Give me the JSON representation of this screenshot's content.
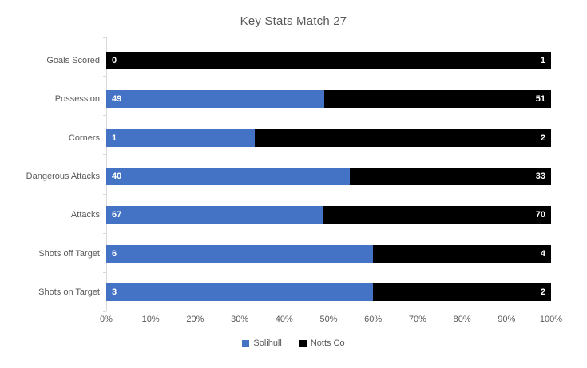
{
  "chart_data": {
    "type": "bar",
    "subtype": "horizontal-100-percent-stacked",
    "title": "Key Stats Match 27",
    "categories": [
      "Goals Scored",
      "Possession",
      "Corners",
      "Dangerous Attacks",
      "Attacks",
      "Shots off Target",
      "Shots on Target"
    ],
    "series": [
      {
        "name": "Solihull",
        "color": "#4472C4",
        "values": [
          0,
          49,
          1,
          40,
          67,
          6,
          3
        ]
      },
      {
        "name": "Notts Co",
        "color": "#000000",
        "values": [
          1,
          51,
          2,
          33,
          70,
          4,
          2
        ]
      }
    ],
    "xlabel": "",
    "ylabel": "",
    "xlim": [
      0,
      100
    ],
    "x_tick_labels": [
      "0%",
      "10%",
      "20%",
      "30%",
      "40%",
      "50%",
      "60%",
      "70%",
      "80%",
      "90%",
      "100%"
    ],
    "grid": false,
    "legend_position": "bottom",
    "data_labels": "inside-end"
  },
  "colors": {
    "background": "#FFFFFF",
    "axis_line": "#D9D9D9",
    "text_gray": "#595959",
    "data_label": "#FFFFFF"
  }
}
